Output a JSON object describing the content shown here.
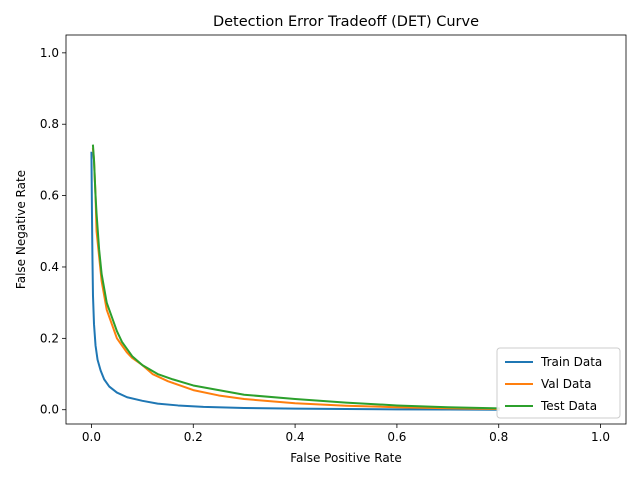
{
  "chart_data": {
    "type": "line",
    "title": "Detection Error Tradeoff (DET) Curve",
    "xlabel": "False Positive Rate",
    "ylabel": "False Negative Rate",
    "xlim": [
      -0.05,
      1.05
    ],
    "ylim": [
      -0.04,
      1.05
    ],
    "xticks": [
      0.0,
      0.2,
      0.4,
      0.6,
      0.8,
      1.0
    ],
    "xtick_labels": [
      "0.0",
      "0.2",
      "0.4",
      "0.6",
      "0.8",
      "1.0"
    ],
    "yticks": [
      0.0,
      0.2,
      0.4,
      0.6,
      0.8,
      1.0
    ],
    "ytick_labels": [
      "0.0",
      "0.2",
      "0.4",
      "0.6",
      "0.8",
      "1.0"
    ],
    "grid": false,
    "legend_position": "lower-right",
    "series": [
      {
        "name": "Train Data",
        "color": "#1f77b4",
        "x": [
          0.0,
          0.001,
          0.002,
          0.003,
          0.005,
          0.008,
          0.012,
          0.018,
          0.025,
          0.035,
          0.05,
          0.07,
          0.1,
          0.13,
          0.17,
          0.22,
          0.3,
          0.4,
          0.5,
          0.6,
          0.7,
          0.8
        ],
        "y": [
          0.72,
          0.55,
          0.42,
          0.32,
          0.24,
          0.18,
          0.14,
          0.11,
          0.085,
          0.065,
          0.048,
          0.035,
          0.025,
          0.017,
          0.012,
          0.008,
          0.005,
          0.003,
          0.002,
          0.001,
          0.0005,
          0.0
        ]
      },
      {
        "name": "Val Data",
        "color": "#ff7f0e",
        "x": [
          0.003,
          0.005,
          0.008,
          0.01,
          0.015,
          0.02,
          0.03,
          0.04,
          0.05,
          0.06,
          0.07,
          0.08,
          0.1,
          0.12,
          0.15,
          0.2,
          0.25,
          0.3,
          0.4,
          0.5,
          0.6,
          0.7,
          0.8
        ],
        "y": [
          0.73,
          0.7,
          0.6,
          0.5,
          0.43,
          0.36,
          0.28,
          0.24,
          0.2,
          0.18,
          0.16,
          0.145,
          0.125,
          0.1,
          0.08,
          0.055,
          0.04,
          0.03,
          0.018,
          0.011,
          0.007,
          0.004,
          0.002
        ]
      },
      {
        "name": "Test Data",
        "color": "#2ca02c",
        "x": [
          0.003,
          0.005,
          0.008,
          0.01,
          0.015,
          0.02,
          0.03,
          0.04,
          0.05,
          0.06,
          0.07,
          0.08,
          0.1,
          0.13,
          0.16,
          0.2,
          0.25,
          0.3,
          0.4,
          0.5,
          0.6,
          0.7,
          0.8
        ],
        "y": [
          0.74,
          0.7,
          0.6,
          0.55,
          0.45,
          0.38,
          0.3,
          0.26,
          0.22,
          0.19,
          0.17,
          0.15,
          0.125,
          0.1,
          0.085,
          0.068,
          0.055,
          0.042,
          0.03,
          0.02,
          0.012,
          0.007,
          0.004
        ]
      }
    ]
  }
}
